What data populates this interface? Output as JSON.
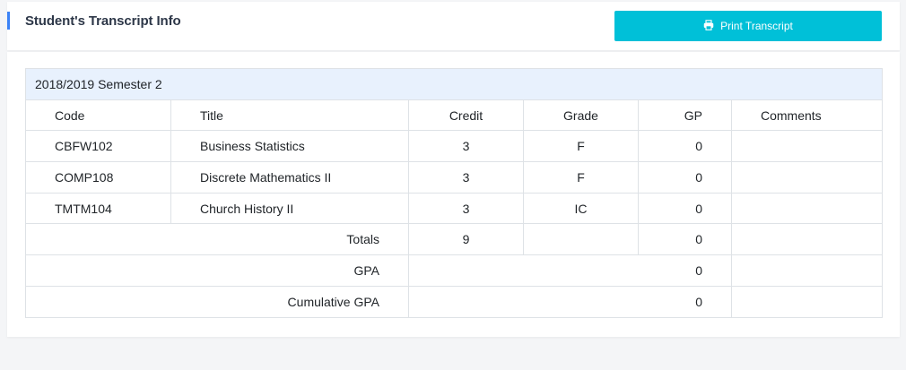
{
  "header": {
    "title": "Student's Transcript Info",
    "print_label": "Print Transcript"
  },
  "semester": {
    "label": "2018/2019 Semester 2"
  },
  "columns": [
    "Code",
    "Title",
    "Credit",
    "Grade",
    "GP",
    "Comments"
  ],
  "rows": [
    {
      "code": "CBFW102",
      "title": "Business Statistics",
      "credit": "3",
      "grade": "F",
      "gp": "0",
      "comments": ""
    },
    {
      "code": "COMP108",
      "title": "Discrete Mathematics II",
      "credit": "3",
      "grade": "F",
      "gp": "0",
      "comments": ""
    },
    {
      "code": "TMTM104",
      "title": "Church History II",
      "credit": "3",
      "grade": "IC",
      "gp": "0",
      "comments": ""
    }
  ],
  "totals": {
    "label": "Totals",
    "credit": "9",
    "gp": "0"
  },
  "gpa": {
    "label": "GPA",
    "value": "0"
  },
  "cumulative_gpa": {
    "label": "Cumulative GPA",
    "value": "0"
  },
  "colors": {
    "accent": "#3b82f6",
    "button": "#00c0d8",
    "semester_bg": "#e8f1fd"
  }
}
